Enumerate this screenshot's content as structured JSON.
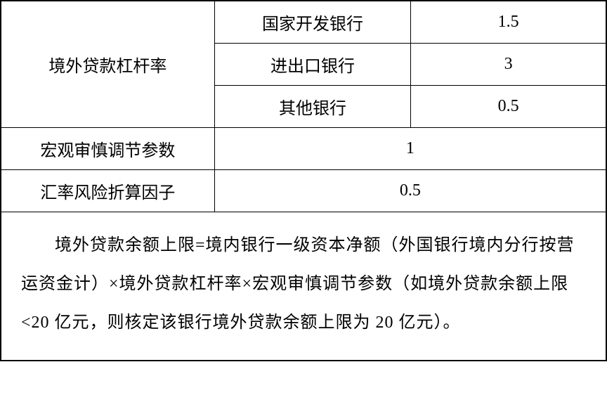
{
  "table": {
    "font_family": "SimSun",
    "font_size": 24,
    "text_color": "#000000",
    "border_color": "#000000",
    "background_color": "#ffffff",
    "rows": [
      {
        "label": "境外贷款杠杆率",
        "subrows": [
          {
            "name": "国家开发银行",
            "value": "1.5"
          },
          {
            "name": "进出口银行",
            "value": "3"
          },
          {
            "name": "其他银行",
            "value": "0.5"
          }
        ]
      },
      {
        "label": "宏观审慎调节参数",
        "value": "1"
      },
      {
        "label": "汇率风险折算因子",
        "value": "0.5"
      }
    ],
    "formula_text": "境外贷款余额上限=境内银行一级资本净额（外国银行境内分行按营运资金计）×境外贷款杠杆率×宏观审慎调节参数（如境外贷款余额上限<20 亿元，则核定该银行境外贷款余额上限为 20 亿元）。"
  }
}
